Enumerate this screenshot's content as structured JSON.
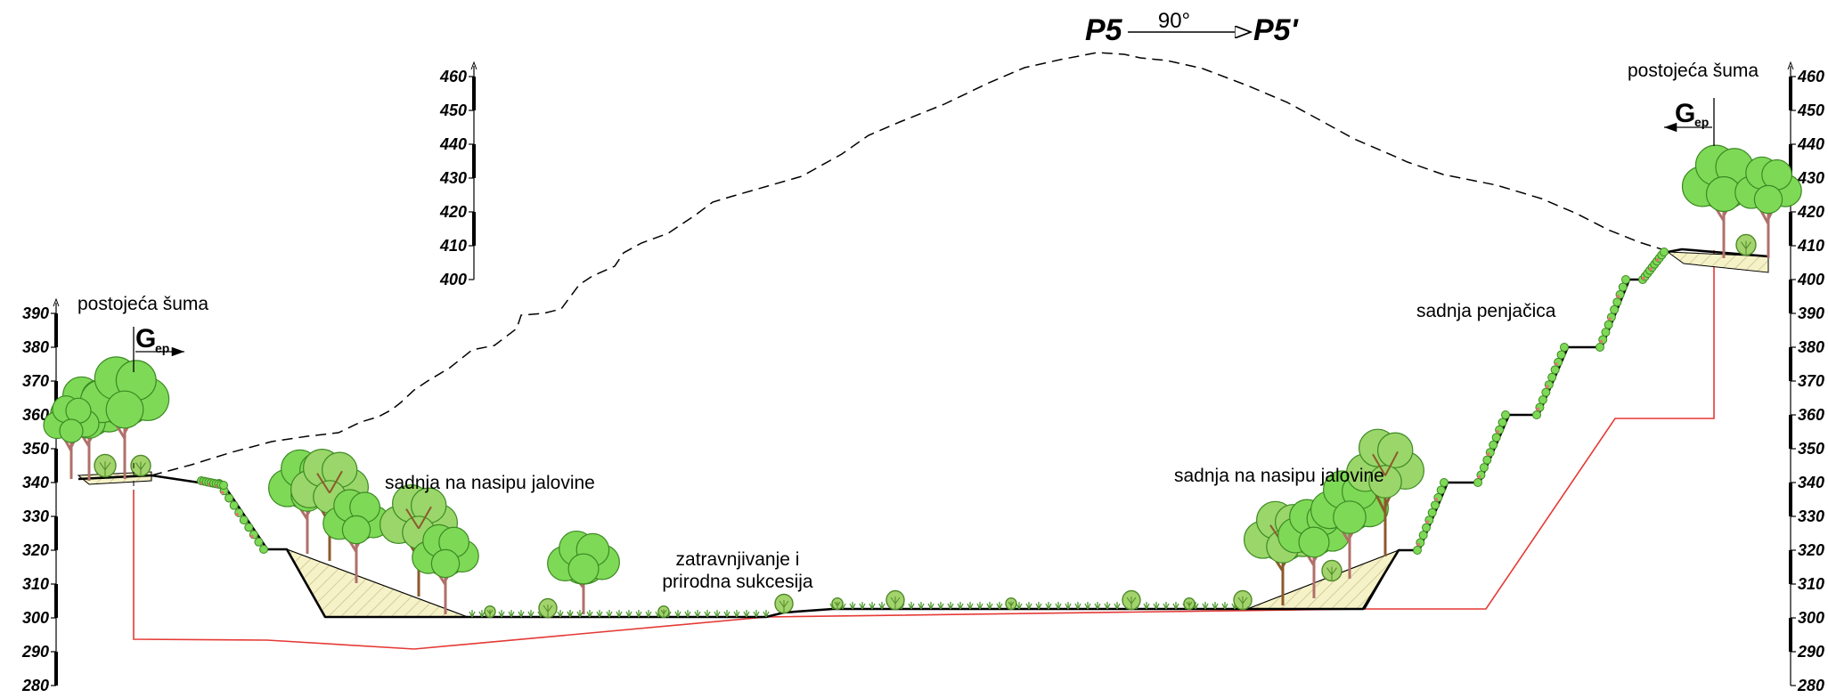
{
  "section": {
    "from": "P5",
    "to": "P5'",
    "angle": "90°"
  },
  "labels": {
    "forest_left": "postojeća šuma",
    "forest_right": "postojeća šuma",
    "planting_left": "sadnja na nasipu jalovine",
    "planting_right": "sadnja na nasipu jalovine",
    "grassing_line1": "zatravnjivanje i",
    "grassing_line2": "prirodna sukcesija",
    "climbers": "sadnja penjačica"
  },
  "boundary_markers": {
    "left": {
      "main": "G",
      "sub": "ep"
    },
    "right": {
      "main": "G",
      "sub": "ep"
    }
  },
  "elevation_scales": {
    "left": [
      "390",
      "380",
      "370",
      "360",
      "350",
      "340",
      "330",
      "320",
      "310",
      "300",
      "290",
      "280"
    ],
    "middle": [
      "460",
      "450",
      "440",
      "430",
      "420",
      "410",
      "400"
    ],
    "right": [
      "460",
      "450",
      "440",
      "430",
      "420",
      "410",
      "400",
      "390",
      "380",
      "370",
      "360",
      "350",
      "340",
      "330",
      "320",
      "310",
      "300",
      "290",
      "280"
    ]
  },
  "colors": {
    "ground_line": "#000000",
    "original_terrain": "#000000",
    "limit_line": "#e53935",
    "fill_hatch": "#f6f2c8",
    "tree_foliage": "#7ed957",
    "tree_trunk": "#8b5a2b",
    "shrub": "#a3d36c"
  }
}
